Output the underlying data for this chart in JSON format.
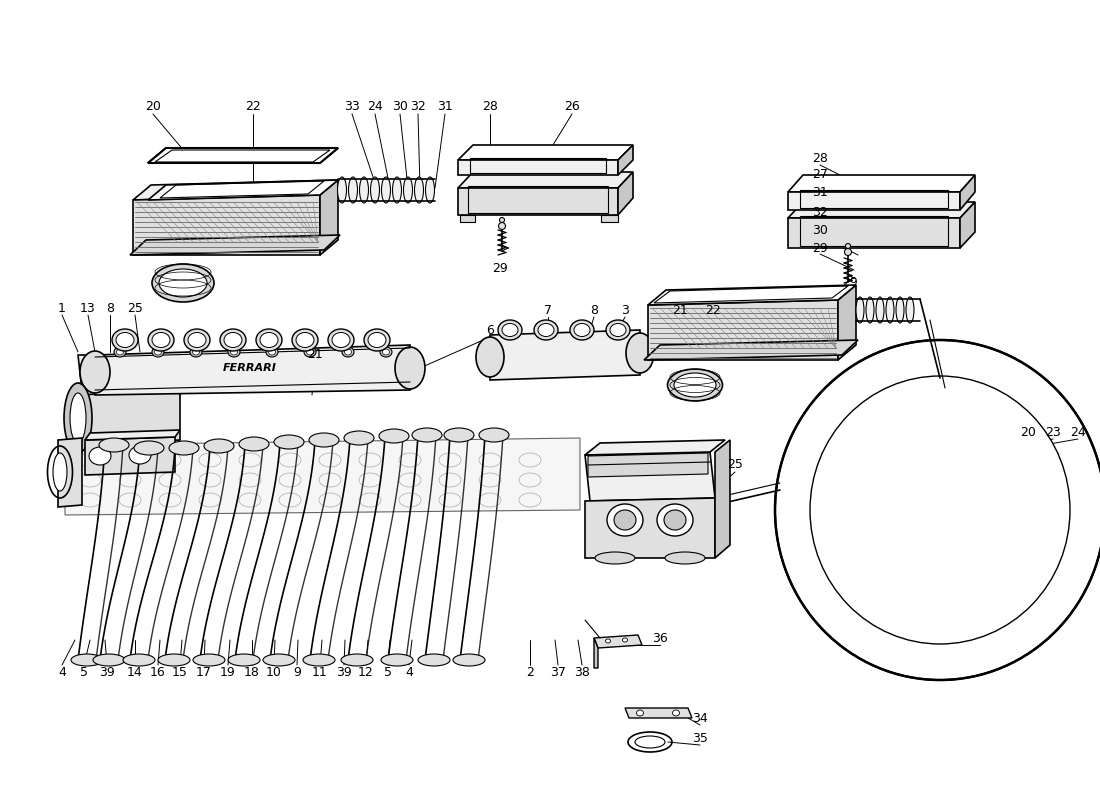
{
  "bg_color": "#ffffff",
  "line_color": "#000000",
  "fig_width": 11.0,
  "fig_height": 8.0,
  "dpi": 100,
  "gray1": "#f0f0f0",
  "gray2": "#e0e0e0",
  "gray3": "#c8c8c8",
  "gray4": "#d8d8d8",
  "labels": {
    "top_row": [
      [
        "20",
        153,
        107
      ],
      [
        "22",
        253,
        107
      ],
      [
        "33",
        352,
        107
      ],
      [
        "24",
        375,
        107
      ],
      [
        "30",
        400,
        107
      ],
      [
        "32",
        418,
        107
      ],
      [
        "31",
        445,
        107
      ],
      [
        "28",
        490,
        107
      ],
      [
        "26",
        572,
        107
      ]
    ],
    "top_right_col": [
      [
        "28",
        820,
        158
      ],
      [
        "27",
        820,
        175
      ],
      [
        "31",
        820,
        193
      ],
      [
        "32",
        820,
        212
      ],
      [
        "30",
        820,
        230
      ],
      [
        "29",
        820,
        248
      ]
    ],
    "right_side": [
      [
        "20",
        1028,
        432
      ],
      [
        "23",
        1053,
        432
      ],
      [
        "24",
        1078,
        432
      ],
      [
        "25",
        735,
        465
      ]
    ],
    "left_mid": [
      [
        "1",
        62,
        308
      ],
      [
        "13",
        88,
        308
      ],
      [
        "8",
        110,
        308
      ],
      [
        "25",
        135,
        308
      ]
    ],
    "center_mid": [
      [
        "7",
        548,
        310
      ],
      [
        "8",
        594,
        310
      ],
      [
        "3",
        625,
        310
      ],
      [
        "21",
        680,
        310
      ],
      [
        "22",
        713,
        310
      ]
    ],
    "misc": [
      [
        "6",
        490,
        330
      ],
      [
        "21",
        315,
        355
      ],
      [
        "29",
        500,
        268
      ],
      [
        "29",
        850,
        282
      ]
    ],
    "bottom_left": [
      [
        "4",
        62,
        672
      ],
      [
        "5",
        84,
        672
      ],
      [
        "39",
        107,
        672
      ],
      [
        "14",
        135,
        672
      ],
      [
        "16",
        158,
        672
      ],
      [
        "15",
        180,
        672
      ],
      [
        "17",
        204,
        672
      ],
      [
        "19",
        228,
        672
      ],
      [
        "18",
        252,
        672
      ],
      [
        "10",
        274,
        672
      ],
      [
        "9",
        297,
        672
      ],
      [
        "11",
        320,
        672
      ],
      [
        "39",
        344,
        672
      ],
      [
        "12",
        366,
        672
      ],
      [
        "5",
        388,
        672
      ],
      [
        "4",
        409,
        672
      ]
    ],
    "bottom_right": [
      [
        "2",
        530,
        672
      ],
      [
        "37",
        558,
        672
      ],
      [
        "38",
        582,
        672
      ],
      [
        "36",
        660,
        638
      ],
      [
        "34",
        700,
        718
      ],
      [
        "35",
        700,
        738
      ]
    ]
  }
}
